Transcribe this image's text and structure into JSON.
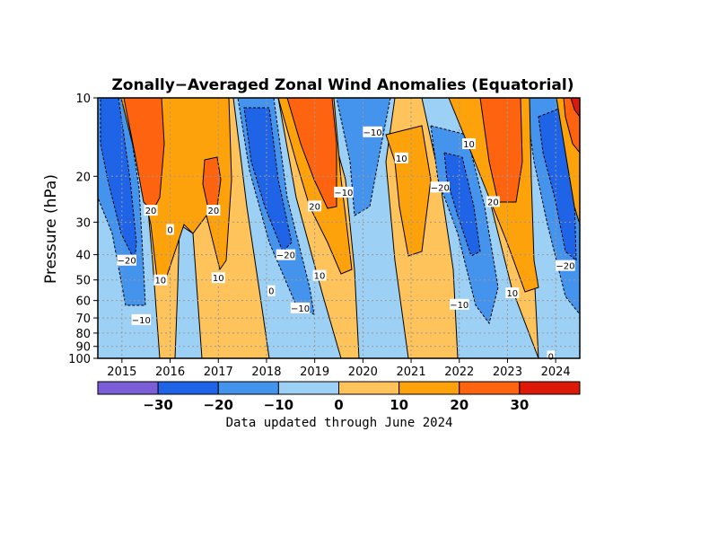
{
  "chart_data": {
    "type": "heatmap",
    "title": "Zonally−Averaged Zonal Wind Anomalies (Equatorial)",
    "ylabel": "Pressure (hPa)",
    "xlabel": "",
    "y_scale": "log",
    "y_reversed": true,
    "ylim": [
      100,
      10
    ],
    "xlim": [
      2014.5,
      2024.5
    ],
    "y_ticks": [
      "10",
      "20",
      "30",
      "40",
      "50",
      "60",
      "70",
      "80",
      "90",
      "100"
    ],
    "y_tick_values": [
      10,
      20,
      30,
      40,
      50,
      60,
      70,
      80,
      90,
      100
    ],
    "x_ticks": [
      "2015",
      "2016",
      "2017",
      "2018",
      "2019",
      "2020",
      "2021",
      "2022",
      "2023",
      "2024"
    ],
    "x_tick_values": [
      2015,
      2016,
      2017,
      2018,
      2019,
      2020,
      2021,
      2022,
      2023,
      2024
    ],
    "grid": true,
    "colorbar": {
      "levels": [
        -40,
        -30,
        -20,
        -10,
        0,
        10,
        20,
        30,
        40
      ],
      "tick_labels": [
        "−30",
        "−20",
        "−10",
        "0",
        "10",
        "20",
        "30"
      ],
      "colors": [
        "#7b5ed6",
        "#1f64e6",
        "#4494ee",
        "#9dd0f5",
        "#fec35a",
        "#fea20b",
        "#fe6410",
        "#dd1a0a"
      ]
    },
    "contour_labels": [
      {
        "text": "−10",
        "x": 2020.2,
        "p": 13.5
      },
      {
        "text": "10",
        "x": 2022.2,
        "p": 15
      },
      {
        "text": "10",
        "x": 2020.8,
        "p": 17
      },
      {
        "text": "20",
        "x": 2015.6,
        "p": 27
      },
      {
        "text": "20",
        "x": 2016.9,
        "p": 27
      },
      {
        "text": "0",
        "x": 2016.0,
        "p": 32
      },
      {
        "text": "20",
        "x": 2019.0,
        "p": 26
      },
      {
        "text": "−10",
        "x": 2019.6,
        "p": 23
      },
      {
        "text": "−20",
        "x": 2021.6,
        "p": 22
      },
      {
        "text": "20",
        "x": 2022.7,
        "p": 25
      },
      {
        "text": "−20",
        "x": 2015.1,
        "p": 42
      },
      {
        "text": "10",
        "x": 2015.8,
        "p": 50
      },
      {
        "text": "10",
        "x": 2017.0,
        "p": 49
      },
      {
        "text": "−20",
        "x": 2018.4,
        "p": 40
      },
      {
        "text": "10",
        "x": 2019.1,
        "p": 48
      },
      {
        "text": "0",
        "x": 2018.1,
        "p": 55
      },
      {
        "text": "−10",
        "x": 2018.7,
        "p": 64
      },
      {
        "text": "−10",
        "x": 2022.0,
        "p": 62
      },
      {
        "text": "10",
        "x": 2023.1,
        "p": 56
      },
      {
        "text": "−20",
        "x": 2024.2,
        "p": 44
      },
      {
        "text": "−10",
        "x": 2015.4,
        "p": 71
      },
      {
        "text": "0",
        "x": 2023.9,
        "p": 98
      }
    ]
  },
  "footer": "Data updated through June 2024"
}
